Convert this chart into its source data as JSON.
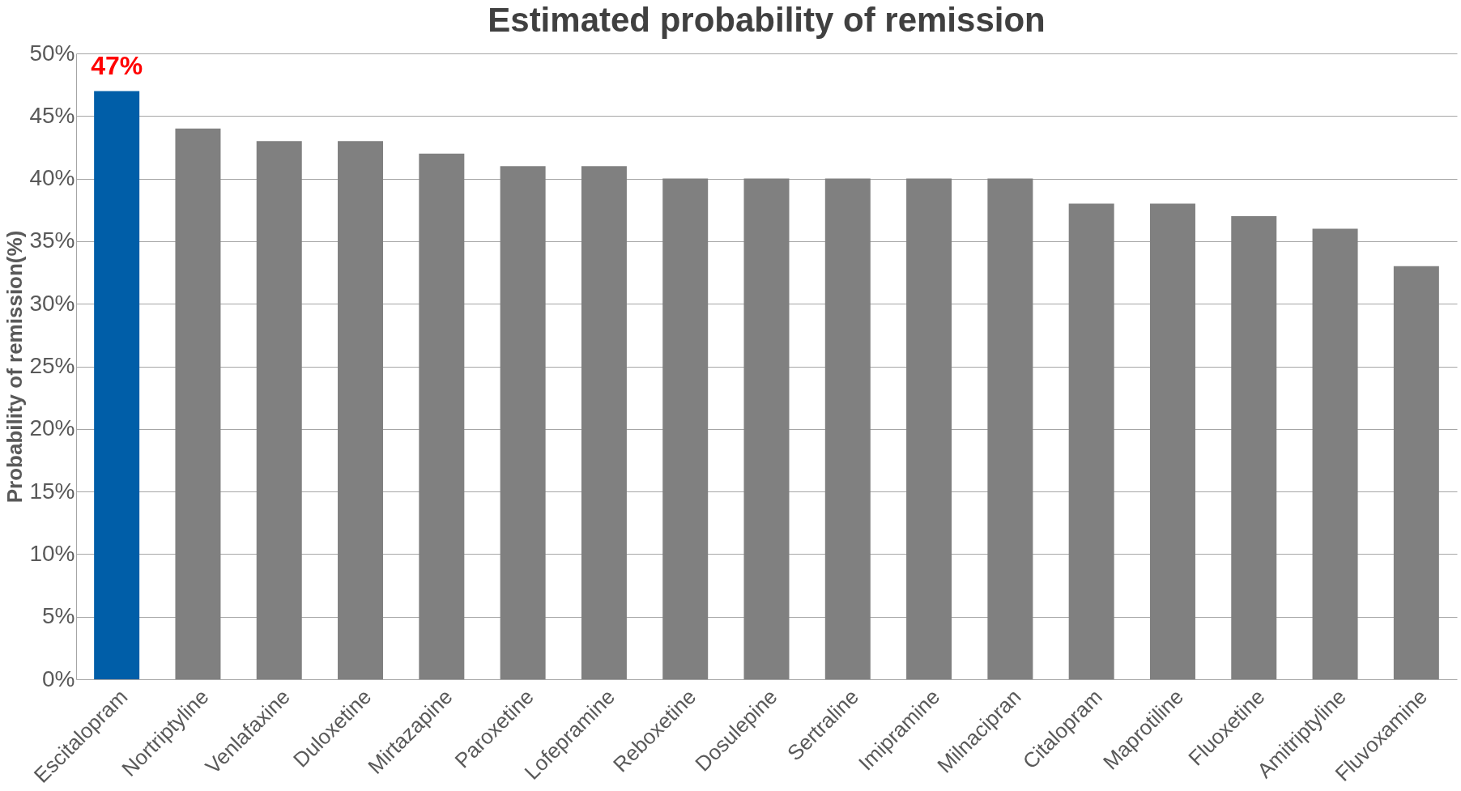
{
  "chart_data": {
    "type": "bar",
    "title": "Estimated probability of remission",
    "ylabel": "Probability of remission(%)",
    "categories": [
      "Escitalopram",
      "Nortriptyline",
      "Venlafaxine",
      "Duloxetine",
      "Mirtazapine",
      "Paroxetine",
      "Lofepramine",
      "Reboxetine",
      "Dosulepine",
      "Sertraline",
      "Imipramine",
      "Milnacipran",
      "Citalopram",
      "Maprotiline",
      "Fluoxetine",
      "Amitriptyline",
      "Fluvoxamine"
    ],
    "values": [
      47,
      44,
      43,
      43,
      42,
      41,
      41,
      40,
      40,
      40,
      40,
      40,
      38,
      38,
      37,
      36,
      33
    ],
    "colors": [
      "#005ea8",
      "#808080",
      "#808080",
      "#808080",
      "#808080",
      "#808080",
      "#808080",
      "#808080",
      "#808080",
      "#808080",
      "#808080",
      "#808080",
      "#808080",
      "#808080",
      "#808080",
      "#808080",
      "#808080"
    ],
    "value_labels": [
      "47%",
      null,
      null,
      null,
      null,
      null,
      null,
      null,
      null,
      null,
      null,
      null,
      null,
      null,
      null,
      null,
      null
    ],
    "ylim": [
      0,
      50
    ],
    "yticks": [
      {
        "value": 0,
        "label": "0%"
      },
      {
        "value": 5,
        "label": "5%"
      },
      {
        "value": 10,
        "label": "10%"
      },
      {
        "value": 15,
        "label": "15%"
      },
      {
        "value": 20,
        "label": "20%"
      },
      {
        "value": 25,
        "label": "25%"
      },
      {
        "value": 30,
        "label": "30%"
      },
      {
        "value": 35,
        "label": "35%"
      },
      {
        "value": 40,
        "label": "40%"
      },
      {
        "value": 45,
        "label": "45%"
      },
      {
        "value": 50,
        "label": "50%"
      }
    ],
    "grid": "y"
  }
}
